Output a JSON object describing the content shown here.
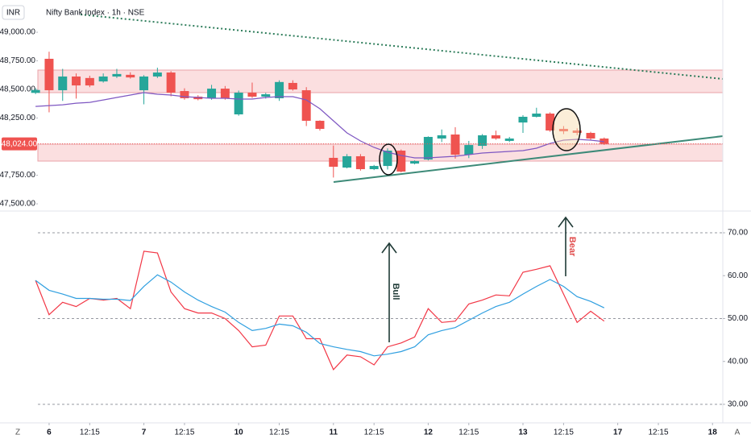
{
  "controls": {
    "currency": "INR",
    "left": "Z",
    "right": "A"
  },
  "chart_data": [
    {
      "type": "candlestick",
      "title": "Nifty Bank Index · 1h · NSE",
      "xlim": [
        0.17,
        50.76
      ],
      "ylim": [
        47437,
        49282
      ],
      "yticks": [
        {
          "value": 47500,
          "label": "47,500.00"
        },
        {
          "value": 47750,
          "label": "47,750.00"
        },
        {
          "value": 48250,
          "label": "48,250.00"
        },
        {
          "value": 48500,
          "label": "48,500.00"
        },
        {
          "value": 48750,
          "label": "48,750.00"
        },
        {
          "value": 49000,
          "label": "49,000.00"
        }
      ],
      "last_price": {
        "value": 48024,
        "label": "48,024.00"
      },
      "up_color": "#26a69a",
      "down_color": "#ef5350",
      "overlay_color": "#7e57c2",
      "open": [
        48470,
        48768,
        48493,
        48613,
        48600,
        48570,
        48613,
        48628,
        48493,
        48613,
        48648,
        48486,
        48437,
        48423,
        48507,
        48282,
        48472,
        48437,
        48423,
        48557,
        48493,
        48226,
        47902,
        47817,
        47916,
        47803,
        47831,
        47965,
        47852,
        47887,
        48071,
        48106,
        47930,
        48007,
        48099,
        48050,
        48211,
        48261,
        48289,
        48155,
        48141,
        48120,
        48071
      ],
      "high": [
        48510,
        48830,
        48680,
        48640,
        48620,
        48640,
        48680,
        48650,
        48625,
        48690,
        48660,
        48510,
        48450,
        48540,
        48530,
        48490,
        48560,
        48470,
        48580,
        48580,
        48520,
        48230,
        48010,
        47935,
        47935,
        47840,
        47985,
        47975,
        47880,
        48090,
        48150,
        48170,
        48050,
        48110,
        48140,
        48085,
        48275,
        48340,
        48300,
        48180,
        48160,
        48130,
        48080
      ],
      "low": [
        48460,
        48300,
        48400,
        48420,
        48520,
        48560,
        48600,
        48595,
        48370,
        48600,
        48440,
        48410,
        48405,
        48410,
        48410,
        48270,
        48425,
        48420,
        48400,
        48490,
        48180,
        48140,
        47730,
        47810,
        47790,
        47795,
        47800,
        47775,
        47845,
        47880,
        48040,
        47895,
        47900,
        47980,
        48060,
        48040,
        48120,
        48255,
        48130,
        48110,
        48100,
        48060,
        48015
      ],
      "close": [
        48495,
        48493,
        48613,
        48535,
        48535,
        48613,
        48635,
        48605,
        48613,
        48648,
        48472,
        48423,
        48415,
        48507,
        48423,
        48472,
        48437,
        48458,
        48565,
        48500,
        48226,
        48155,
        47824,
        47916,
        47803,
        47831,
        47965,
        47782,
        47874,
        48085,
        48099,
        47930,
        48014,
        48099,
        48071,
        48071,
        48261,
        48289,
        48141,
        48134,
        48120,
        48071,
        48024
      ],
      "overlay": [
        48352,
        48359,
        48366,
        48380,
        48387,
        48408,
        48430,
        48451,
        48472,
        48458,
        48451,
        48437,
        48430,
        48423,
        48423,
        48416,
        48416,
        48430,
        48437,
        48437,
        48408,
        48331,
        48226,
        48120,
        48050,
        47993,
        47951,
        47923,
        47902,
        47902,
        47909,
        47916,
        47930,
        47944,
        47951,
        47958,
        47965,
        47986,
        48028,
        48057,
        48064,
        48057,
        48043
      ]
    },
    {
      "type": "line",
      "xlim": [
        0.17,
        50.76
      ],
      "xticks": [
        {
          "value": 1,
          "label": "6"
        },
        {
          "value": 4,
          "label": "12:15"
        },
        {
          "value": 8,
          "label": "7"
        },
        {
          "value": 11,
          "label": "12:15"
        },
        {
          "value": 15,
          "label": "10"
        },
        {
          "value": 18,
          "label": "12:15"
        },
        {
          "value": 22,
          "label": "11"
        },
        {
          "value": 25,
          "label": "12:15"
        },
        {
          "value": 29,
          "label": "12"
        },
        {
          "value": 32,
          "label": "12:15"
        },
        {
          "value": 36,
          "label": "13"
        },
        {
          "value": 39,
          "label": "12:15"
        },
        {
          "value": 43,
          "label": "17"
        },
        {
          "value": 46,
          "label": "12:15"
        },
        {
          "value": 50,
          "label": "18"
        }
      ],
      "ylim": [
        25.68,
        75.07
      ],
      "yticks": [
        {
          "value": 30,
          "label": "30.00"
        },
        {
          "value": 40,
          "label": "40.00"
        },
        {
          "value": 50,
          "label": "50.00"
        },
        {
          "value": 60,
          "label": "60.00"
        },
        {
          "value": 70,
          "label": "70.00"
        }
      ],
      "bands": [
        70,
        50,
        30
      ],
      "annotations": [
        "Bull",
        "Bear"
      ],
      "series": [
        {
          "color": "#f23645",
          "values": [
            58.9,
            50.9,
            53.8,
            52.8,
            54.7,
            54.3,
            54.7,
            52.3,
            65.7,
            65.3,
            56.2,
            52.3,
            51.3,
            51.3,
            50.0,
            47.2,
            43.4,
            43.8,
            50.6,
            50.6,
            45.3,
            45.3,
            38.1,
            41.5,
            41.1,
            39.2,
            43.4,
            44.3,
            45.7,
            52.3,
            49.1,
            49.4,
            53.4,
            54.3,
            55.5,
            55.3,
            60.8,
            61.5,
            62.3,
            55.7,
            49.1,
            51.7,
            49.4
          ]
        },
        {
          "color": "#2f9fe0",
          "values": [
            58.9,
            56.6,
            55.7,
            54.7,
            54.7,
            54.5,
            54.5,
            54.2,
            57.5,
            60.2,
            58.5,
            56.2,
            54.3,
            52.8,
            51.5,
            49.1,
            47.2,
            47.7,
            48.7,
            48.3,
            46.8,
            44.2,
            43.4,
            42.8,
            42.3,
            41.3,
            41.7,
            42.3,
            43.4,
            46.2,
            47.2,
            47.9,
            49.6,
            51.3,
            52.8,
            53.8,
            55.7,
            57.5,
            59.1,
            57.5,
            55.1,
            54.0,
            52.5
          ]
        }
      ]
    }
  ]
}
